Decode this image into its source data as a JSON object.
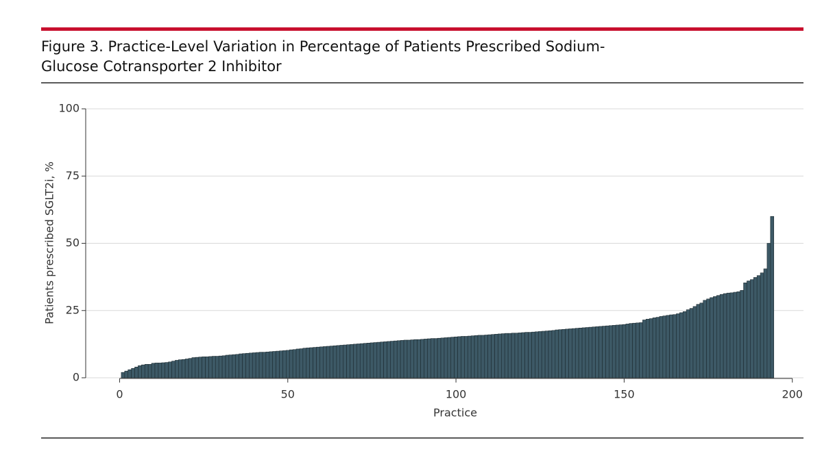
{
  "chart_data": {
    "type": "bar",
    "title": "Figure 3. Practice-Level Variation in Percentage of Patients Prescribed Sodium-Glucose Cotransporter 2 Inhibitor",
    "x_label": "Practice",
    "y_label": "Patients prescribed SGLT2i, %",
    "color": "#3d5966",
    "x": [
      1,
      2,
      3,
      4,
      5,
      6,
      7,
      8,
      9,
      10,
      11,
      12,
      13,
      14,
      15,
      16,
      17,
      18,
      19,
      20,
      21,
      22,
      23,
      24,
      25,
      26,
      27,
      28,
      29,
      30,
      31,
      32,
      33,
      34,
      35,
      36,
      37,
      38,
      39,
      40,
      41,
      42,
      43,
      44,
      45,
      46,
      47,
      48,
      49,
      50,
      51,
      52,
      53,
      54,
      55,
      56,
      57,
      58,
      59,
      60,
      61,
      62,
      63,
      64,
      65,
      66,
      67,
      68,
      69,
      70,
      71,
      72,
      73,
      74,
      75,
      76,
      77,
      78,
      79,
      80,
      81,
      82,
      83,
      84,
      85,
      86,
      87,
      88,
      89,
      90,
      91,
      92,
      93,
      94,
      95,
      96,
      97,
      98,
      99,
      100,
      101,
      102,
      103,
      104,
      105,
      106,
      107,
      108,
      109,
      110,
      111,
      112,
      113,
      114,
      115,
      116,
      117,
      118,
      119,
      120,
      121,
      122,
      123,
      124,
      125,
      126,
      127,
      128,
      129,
      130,
      131,
      132,
      133,
      134,
      135,
      136,
      137,
      138,
      139,
      140,
      141,
      142,
      143,
      144,
      145,
      146,
      147,
      148,
      149,
      150,
      151,
      152,
      153,
      154,
      155,
      156,
      157,
      158,
      159,
      160,
      161,
      162,
      163,
      164,
      165,
      166,
      167,
      168,
      169,
      170,
      171,
      172,
      173,
      174,
      175,
      176,
      177,
      178,
      179,
      180,
      181,
      182,
      183,
      184,
      185,
      186,
      187,
      188,
      189,
      190,
      191,
      192,
      193,
      194
    ],
    "values": [
      2,
      2.5,
      3,
      3.5,
      4,
      4.5,
      4.8,
      5,
      5,
      5.4,
      5.5,
      5.5,
      5.6,
      5.7,
      5.9,
      6.2,
      6.5,
      6.7,
      6.8,
      7,
      7.2,
      7.5,
      7.6,
      7.7,
      7.8,
      7.8,
      7.9,
      8,
      8,
      8.1,
      8.2,
      8.4,
      8.5,
      8.6,
      8.7,
      8.9,
      9,
      9.1,
      9.2,
      9.3,
      9.4,
      9.5,
      9.5,
      9.6,
      9.7,
      9.8,
      9.9,
      10,
      10.1,
      10.2,
      10.4,
      10.5,
      10.7,
      10.8,
      11,
      11.1,
      11.2,
      11.3,
      11.4,
      11.5,
      11.6,
      11.7,
      11.8,
      11.9,
      12,
      12.1,
      12.2,
      12.3,
      12.4,
      12.5,
      12.6,
      12.7,
      12.8,
      12.9,
      13,
      13.1,
      13.2,
      13.3,
      13.4,
      13.5,
      13.6,
      13.7,
      13.8,
      13.9,
      14,
      14,
      14.1,
      14.2,
      14.2,
      14.3,
      14.4,
      14.5,
      14.6,
      14.6,
      14.7,
      14.8,
      14.9,
      15,
      15.1,
      15.2,
      15.3,
      15.4,
      15.4,
      15.5,
      15.6,
      15.7,
      15.8,
      15.8,
      15.9,
      16,
      16.1,
      16.2,
      16.3,
      16.4,
      16.5,
      16.5,
      16.6,
      16.6,
      16.7,
      16.8,
      16.9,
      16.9,
      17,
      17.1,
      17.2,
      17.3,
      17.4,
      17.5,
      17.6,
      17.8,
      17.9,
      18,
      18.1,
      18.2,
      18.3,
      18.4,
      18.5,
      18.6,
      18.7,
      18.8,
      18.9,
      19,
      19.1,
      19.2,
      19.3,
      19.4,
      19.5,
      19.6,
      19.7,
      19.8,
      20,
      20.2,
      20.3,
      20.4,
      20.5,
      21.5,
      21.8,
      22,
      22.3,
      22.5,
      22.8,
      23,
      23.2,
      23.4,
      23.5,
      23.8,
      24.2,
      24.6,
      25.3,
      25.8,
      26.5,
      27.3,
      27.8,
      28.8,
      29.3,
      29.8,
      30.2,
      30.6,
      31,
      31.3,
      31.5,
      31.6,
      31.8,
      32,
      32.5,
      35.3,
      36,
      36.5,
      37.3,
      38,
      39,
      40.5,
      50,
      60
    ],
    "xlim": [
      -11.1,
      202.3
    ],
    "xticks": [
      0,
      50,
      100,
      150,
      200
    ],
    "ylim": [
      0,
      100
    ],
    "yticks": [
      0,
      25,
      50,
      75,
      100
    ],
    "grid": true
  }
}
